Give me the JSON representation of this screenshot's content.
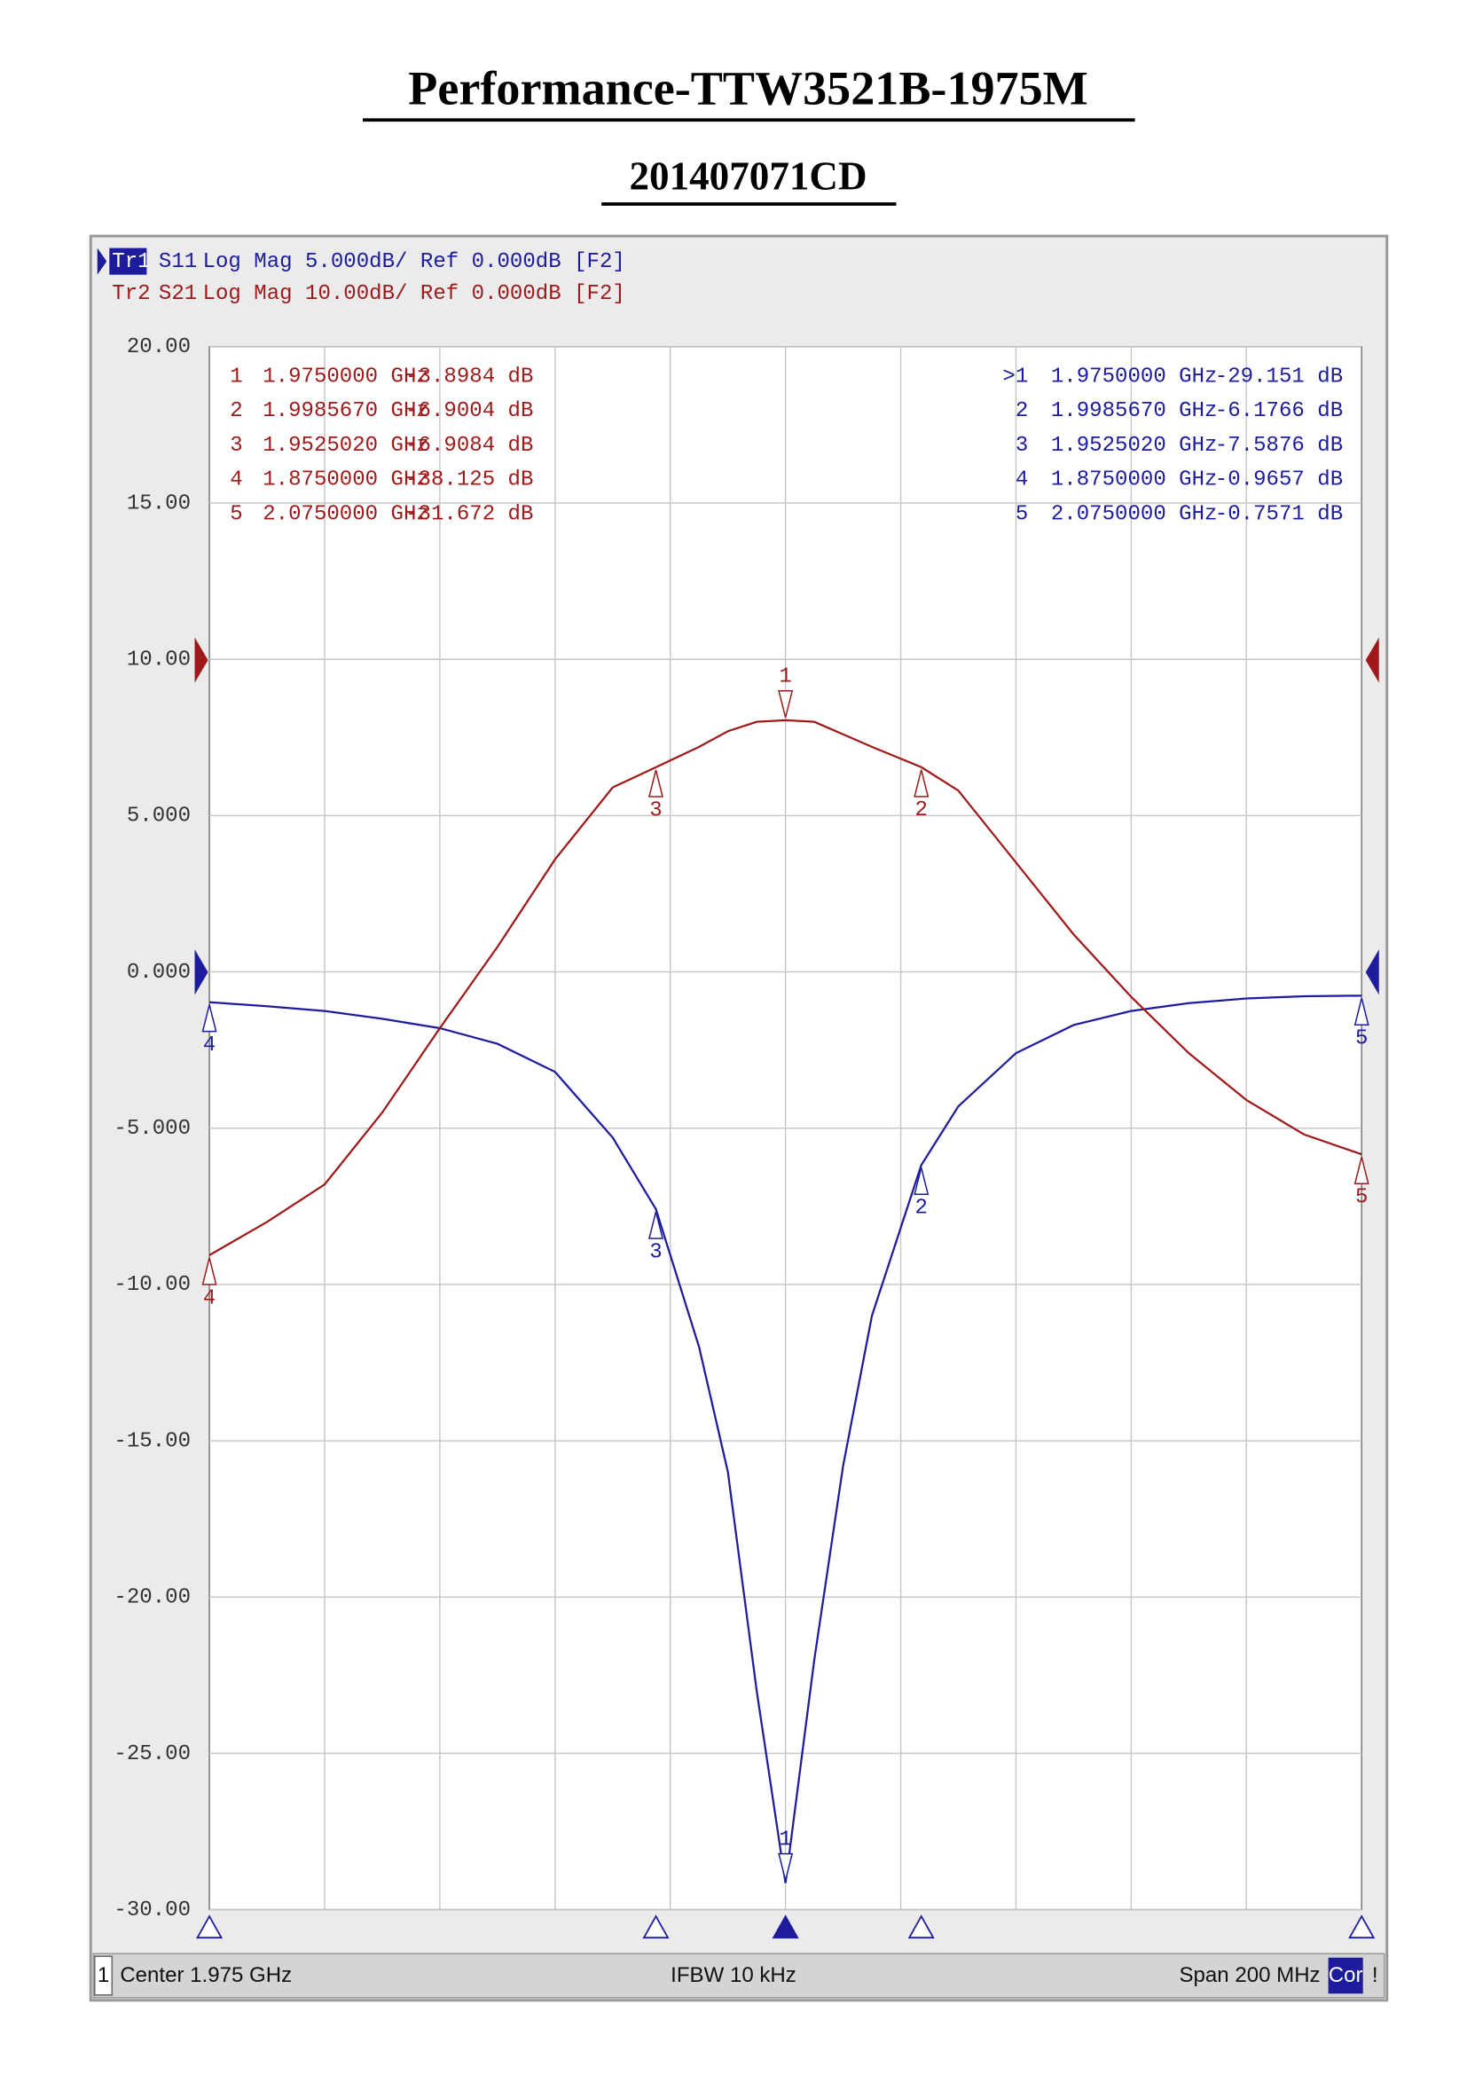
{
  "title": "Performance-TTW3521B-1975M",
  "subtitle": "201407071CD",
  "chart_data": {
    "type": "line",
    "x": [
      1.875,
      1.885,
      1.895,
      1.905,
      1.915,
      1.925,
      1.935,
      1.945,
      1.952502,
      1.96,
      1.965,
      1.97,
      1.975,
      1.98,
      1.985,
      1.99,
      1.998567,
      2.005,
      2.015,
      2.025,
      2.035,
      2.045,
      2.055,
      2.065,
      2.075
    ],
    "xlim": [
      1.875,
      2.075
    ],
    "ylim": [
      -30,
      20
    ],
    "yticks": [
      {
        "value": 20,
        "label": "20.00"
      },
      {
        "value": 15,
        "label": "15.00"
      },
      {
        "value": 10,
        "label": "10.00"
      },
      {
        "value": 5,
        "label": "5.000"
      },
      {
        "value": 0,
        "label": "0.000"
      },
      {
        "value": -5,
        "label": "-5.000"
      },
      {
        "value": -10,
        "label": "-10.00"
      },
      {
        "value": -15,
        "label": "-15.00"
      },
      {
        "value": -20,
        "label": "-20.00"
      },
      {
        "value": -25,
        "label": "-25.00"
      },
      {
        "value": -30,
        "label": "-30.00"
      }
    ],
    "y2lim": [
      -80,
      20
    ],
    "grid": true,
    "series": [
      {
        "trace": "Tr1",
        "name": "S11",
        "format": "Log Mag 5.000dB/ Ref 0.000dB [F2]",
        "color": "#1c1c9c",
        "values": [
          -0.97,
          -1.1,
          -1.25,
          -1.5,
          -1.8,
          -2.3,
          -3.2,
          -5.3,
          -7.59,
          -12,
          -16,
          -23,
          -29.15,
          -22,
          -15.8,
          -11,
          -6.18,
          -4.3,
          -2.6,
          -1.7,
          -1.25,
          -1.0,
          -0.85,
          -0.78,
          -0.76
        ],
        "markers": [
          {
            "id": "1",
            "readout_id": ">1",
            "x": 1.975,
            "value": -29.151,
            "x_label": "1.9750000 GHz",
            "value_label": "-29.151 dB"
          },
          {
            "id": "2",
            "x": 1.998567,
            "value": -6.1766,
            "x_label": "1.9985670 GHz",
            "value_label": "-6.1766 dB"
          },
          {
            "id": "3",
            "x": 1.952502,
            "value": -7.5876,
            "x_label": "1.9525020 GHz",
            "value_label": "-7.5876 dB"
          },
          {
            "id": "4",
            "x": 1.875,
            "value": -0.9657,
            "x_label": "1.8750000 GHz",
            "value_label": "-0.9657 dB"
          },
          {
            "id": "5",
            "x": 2.075,
            "value": -0.7571,
            "x_label": "2.0750000 GHz",
            "value_label": "-0.7571 dB"
          }
        ]
      },
      {
        "trace": "Tr2",
        "name": "S21",
        "format": "Log Mag 10.00dB/ Ref 0.000dB [F2]",
        "color": "#9e1a1a",
        "axis": "y2",
        "values": [
          -38.125,
          -36,
          -33.6,
          -29,
          -23.6,
          -18.4,
          -12.8,
          -8.2,
          -6.9084,
          -5.6,
          -4.6,
          -4.0,
          -3.8984,
          -4.0,
          -4.8,
          -5.6,
          -6.9004,
          -8.4,
          -13,
          -17.6,
          -21.6,
          -25.2,
          -28.2,
          -30.4,
          -31.672
        ],
        "markers": [
          {
            "id": "1",
            "x": 1.975,
            "value": -3.8984,
            "x_label": "1.9750000 GHz",
            "value_label": "-3.8984 dB"
          },
          {
            "id": "2",
            "x": 1.998567,
            "value": -6.9004,
            "x_label": "1.9985670 GHz",
            "value_label": "-6.9004 dB"
          },
          {
            "id": "3",
            "x": 1.952502,
            "value": -6.9084,
            "x_label": "1.9525020 GHz",
            "value_label": "-6.9084 dB"
          },
          {
            "id": "4",
            "x": 1.875,
            "value": -38.125,
            "x_label": "1.8750000 GHz",
            "value_label": "-38.125 dB"
          },
          {
            "id": "5",
            "x": 2.075,
            "value": -31.672,
            "x_label": "2.0750000 GHz",
            "value_label": "-31.672 dB"
          }
        ]
      }
    ],
    "footer": {
      "channel": "1",
      "center": "Center 1.975 GHz",
      "ifbw": "IFBW 10 kHz",
      "span": "Span 200 MHz",
      "correction": "Cor",
      "status": "!"
    }
  }
}
